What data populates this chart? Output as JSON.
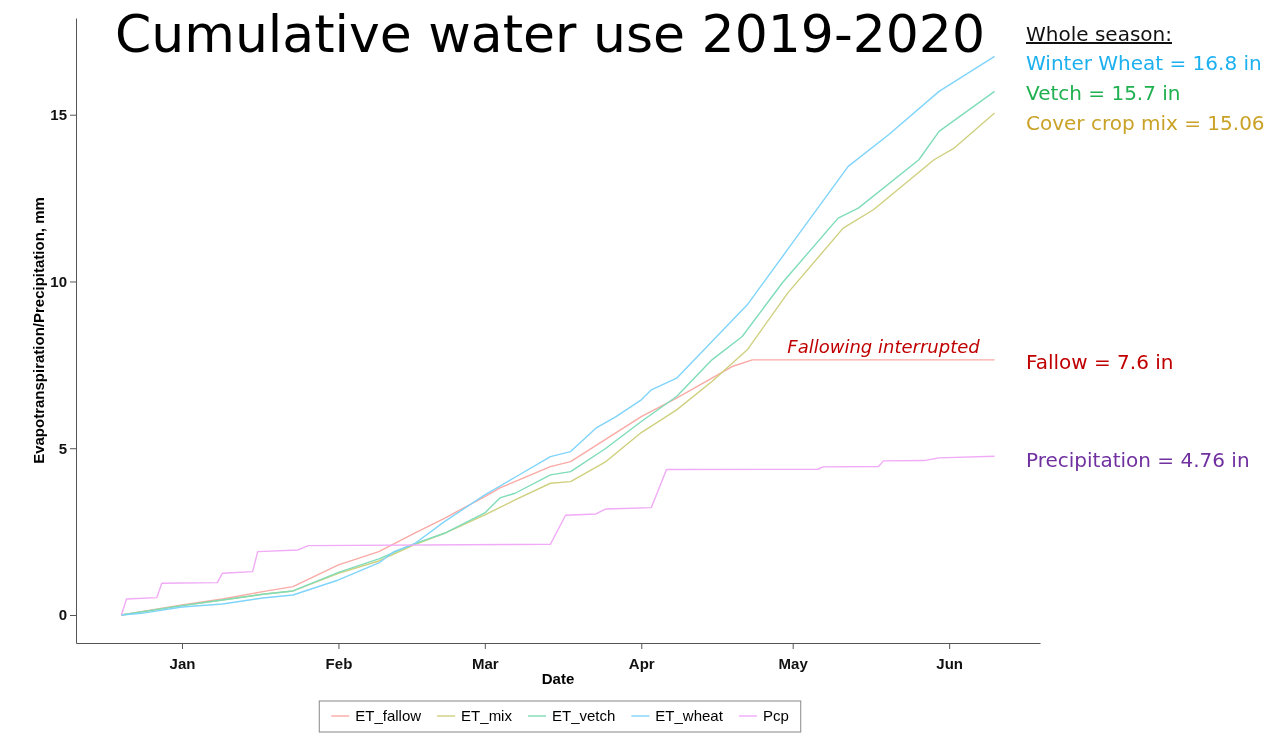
{
  "chart_data": {
    "type": "line",
    "title": "Cumulative water use 2019-2020",
    "xlabel": "Date",
    "ylabel": "Evapotranspiration/Precipitation, mm",
    "xlim": [
      "2019-12-11",
      "2020-06-19"
    ],
    "ylim": [
      -0.84,
      17.9
    ],
    "xticks": [
      {
        "value": "2020-01-01",
        "label": "Jan"
      },
      {
        "value": "2020-02-01",
        "label": "Feb"
      },
      {
        "value": "2020-03-01",
        "label": "Mar"
      },
      {
        "value": "2020-04-01",
        "label": "Apr"
      },
      {
        "value": "2020-05-01",
        "label": "May"
      },
      {
        "value": "2020-06-01",
        "label": "Jun"
      }
    ],
    "yticks": [
      0,
      5,
      10,
      15
    ],
    "grid": false,
    "legend": "bottom",
    "line_style": "solid",
    "series": [
      {
        "name": "ET_fallow",
        "color": "#f9aaa5",
        "x": [
          "2019-12-20",
          "2020-01-01",
          "2020-01-09",
          "2020-01-17",
          "2020-01-23",
          "2020-02-01",
          "2020-02-09",
          "2020-02-16",
          "2020-02-22",
          "2020-03-01",
          "2020-03-04",
          "2020-03-14",
          "2020-03-18",
          "2020-04-01",
          "2020-04-08",
          "2020-04-15",
          "2020-04-19",
          "2020-04-23",
          "2020-06-10"
        ],
        "values": [
          0,
          0.3,
          0.48,
          0.7,
          0.85,
          1.5,
          1.9,
          2.45,
          2.9,
          3.55,
          3.81,
          4.45,
          4.6,
          5.95,
          6.5,
          7.1,
          7.45,
          7.65,
          7.65
        ]
      },
      {
        "name": "ET_mix",
        "color": "#cfd07f",
        "x": [
          "2019-12-20",
          "2020-01-01",
          "2020-01-09",
          "2020-01-17",
          "2020-01-23",
          "2020-02-01",
          "2020-02-09",
          "2020-02-16",
          "2020-02-22",
          "2020-03-01",
          "2020-03-07",
          "2020-03-14",
          "2020-03-18",
          "2020-03-25",
          "2020-04-01",
          "2020-04-08",
          "2020-04-15",
          "2020-04-22",
          "2020-04-30",
          "2020-05-11",
          "2020-05-17",
          "2020-05-29",
          "2020-06-02",
          "2020-06-10"
        ],
        "values": [
          0,
          0.28,
          0.45,
          0.62,
          0.72,
          1.25,
          1.62,
          2.1,
          2.45,
          3.0,
          3.45,
          3.95,
          4.0,
          4.6,
          5.47,
          6.15,
          7.0,
          7.95,
          9.65,
          11.6,
          12.15,
          13.65,
          14.0,
          15.05
        ]
      },
      {
        "name": "ET_vetch",
        "color": "#7fdcb8",
        "x": [
          "2019-12-20",
          "2020-01-01",
          "2020-01-09",
          "2020-01-17",
          "2020-01-23",
          "2020-02-01",
          "2020-02-09",
          "2020-02-16",
          "2020-02-22",
          "2020-03-01",
          "2020-03-04",
          "2020-03-07",
          "2020-03-14",
          "2020-03-18",
          "2020-03-25",
          "2020-04-01",
          "2020-04-08",
          "2020-04-15",
          "2020-04-21",
          "2020-04-29",
          "2020-05-10",
          "2020-05-14",
          "2020-05-26",
          "2020-05-30",
          "2020-06-10"
        ],
        "values": [
          0,
          0.28,
          0.45,
          0.62,
          0.72,
          1.28,
          1.68,
          2.13,
          2.45,
          3.06,
          3.51,
          3.65,
          4.2,
          4.3,
          5.0,
          5.8,
          6.55,
          7.65,
          8.35,
          9.97,
          11.9,
          12.2,
          13.65,
          14.5,
          15.7
        ]
      },
      {
        "name": "ET_wheat",
        "color": "#7fd4fa",
        "x": [
          "2019-12-20",
          "2019-12-24",
          "2020-01-01",
          "2020-01-09",
          "2020-01-17",
          "2020-01-23",
          "2020-02-01",
          "2020-02-09",
          "2020-02-12",
          "2020-02-16",
          "2020-02-22",
          "2020-03-01",
          "2020-03-07",
          "2020-03-14",
          "2020-03-18",
          "2020-03-23",
          "2020-03-27",
          "2020-04-01",
          "2020-04-03",
          "2020-04-08",
          "2020-04-15",
          "2020-04-22",
          "2020-04-30",
          "2020-05-12",
          "2020-05-20",
          "2020-05-30",
          "2020-06-10"
        ],
        "values": [
          0,
          0.05,
          0.24,
          0.33,
          0.51,
          0.6,
          1.05,
          1.56,
          1.9,
          2.13,
          2.8,
          3.6,
          4.13,
          4.75,
          4.9,
          5.6,
          5.95,
          6.45,
          6.75,
          7.1,
          8.2,
          9.3,
          10.96,
          13.45,
          14.4,
          15.7,
          16.75
        ]
      },
      {
        "name": "Pcp",
        "color": "#f0aaf6",
        "x": [
          "2019-12-20",
          "2019-12-21",
          "2019-12-27",
          "2019-12-28",
          "2020-01-08",
          "2020-01-09",
          "2020-01-15",
          "2020-01-16",
          "2020-01-24",
          "2020-01-26",
          "2020-03-14",
          "2020-03-17",
          "2020-03-23",
          "2020-03-25",
          "2020-04-03",
          "2020-04-06",
          "2020-05-06",
          "2020-05-07",
          "2020-05-18",
          "2020-05-19",
          "2020-05-27",
          "2020-05-30",
          "2020-06-10"
        ],
        "values": [
          0,
          0.48,
          0.52,
          0.95,
          0.97,
          1.25,
          1.3,
          1.9,
          1.95,
          2.08,
          2.12,
          2.99,
          3.03,
          3.18,
          3.22,
          4.36,
          4.37,
          4.44,
          4.45,
          4.62,
          4.63,
          4.71,
          4.76
        ]
      }
    ],
    "annotations": [
      "Whole season:",
      "Winter Wheat = 16.8 in",
      "Vetch = 15.7 in",
      "Cover crop mix = 15.06",
      "Fallow = 7.6 in",
      "Precipitation = 4.76 in",
      {
        "text": "Fallowing interrupted",
        "x": "2020-05-19",
        "y": 7.65
      }
    ]
  }
}
